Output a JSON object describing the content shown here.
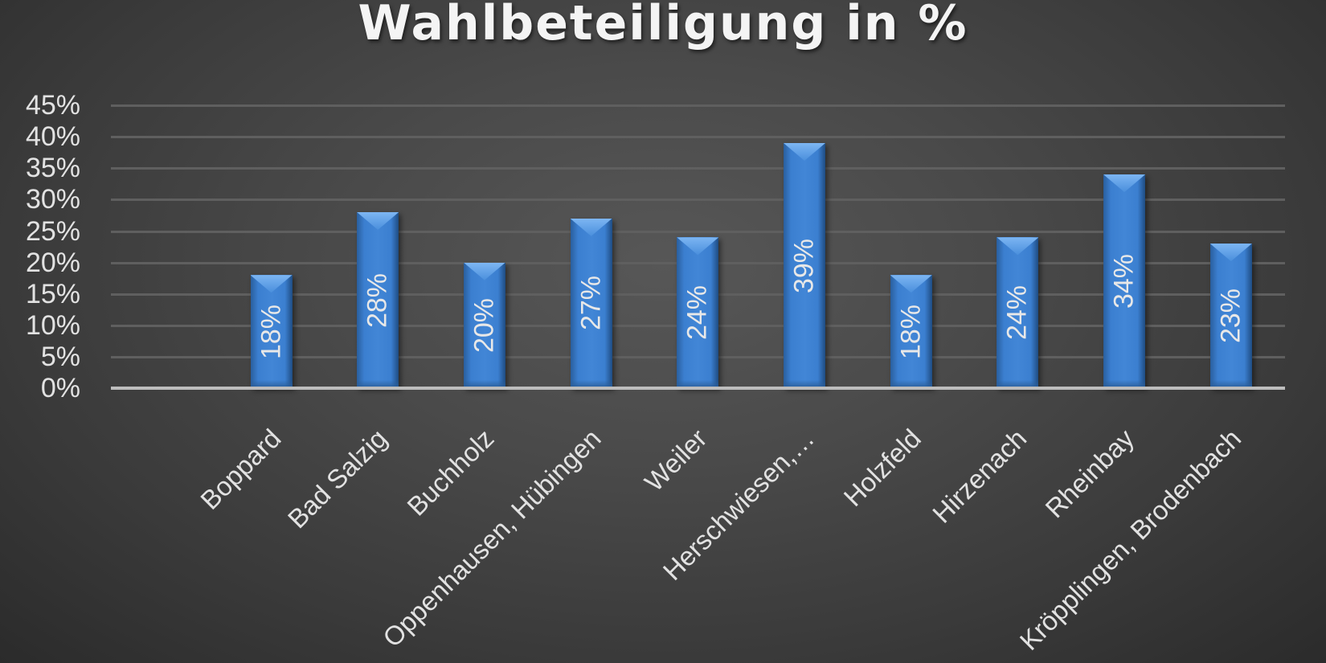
{
  "chart_data": {
    "type": "bar",
    "title": "Wahlbeteiligung in %",
    "xlabel": "",
    "ylabel": "",
    "ylim": [
      0,
      0.45
    ],
    "grid": true,
    "legend": null,
    "y_ticks": [
      "0%",
      "5%",
      "10%",
      "15%",
      "20%",
      "25%",
      "30%",
      "35%",
      "40%",
      "45%"
    ],
    "categories": [
      "Boppard",
      "Bad Salzig",
      "Buchholz",
      "Oppenhausen, Hübingen",
      "Weiler",
      "Herschwiesen,…",
      "Holzfeld",
      "Hirzenach",
      "Rheinbay",
      "Kröpplingen, Brodenbach"
    ],
    "values": [
      0.18,
      0.28,
      0.2,
      0.27,
      0.24,
      0.39,
      0.18,
      0.24,
      0.34,
      0.23
    ],
    "data_labels": [
      "18%",
      "28%",
      "20%",
      "27%",
      "24%",
      "39%",
      "18%",
      "24%",
      "34%",
      "23%"
    ],
    "bar_color": "#3b7fd0",
    "background": "#3f3f3f"
  }
}
